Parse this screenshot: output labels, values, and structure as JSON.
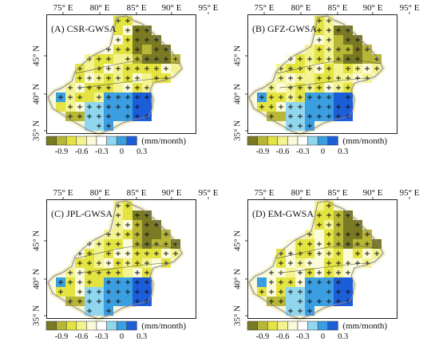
{
  "lon_labels": [
    "75° E",
    "80° E",
    "85° E",
    "90° E",
    "95° E"
  ],
  "lat_labels": [
    "45° N",
    "40° N",
    "35° N"
  ],
  "legend": {
    "unit": "(mm/month)",
    "ticks": [
      "-0.9",
      "-0.6",
      "-0.3",
      "0",
      "0.3"
    ],
    "colors": [
      "#7a7a25",
      "#b7b636",
      "#e3e342",
      "#f3f390",
      "#fbfbd9",
      "#ffffff",
      "#8fd6ee",
      "#3a9ee0",
      "#1c5ed8"
    ]
  },
  "panels": [
    {
      "label": "(A) CSR-GWSA"
    },
    {
      "label": "(B) GFZ-GWSA"
    },
    {
      "label": "(C) JPL-GWSA"
    },
    {
      "label": "(D) EM-GWSA"
    }
  ]
}
